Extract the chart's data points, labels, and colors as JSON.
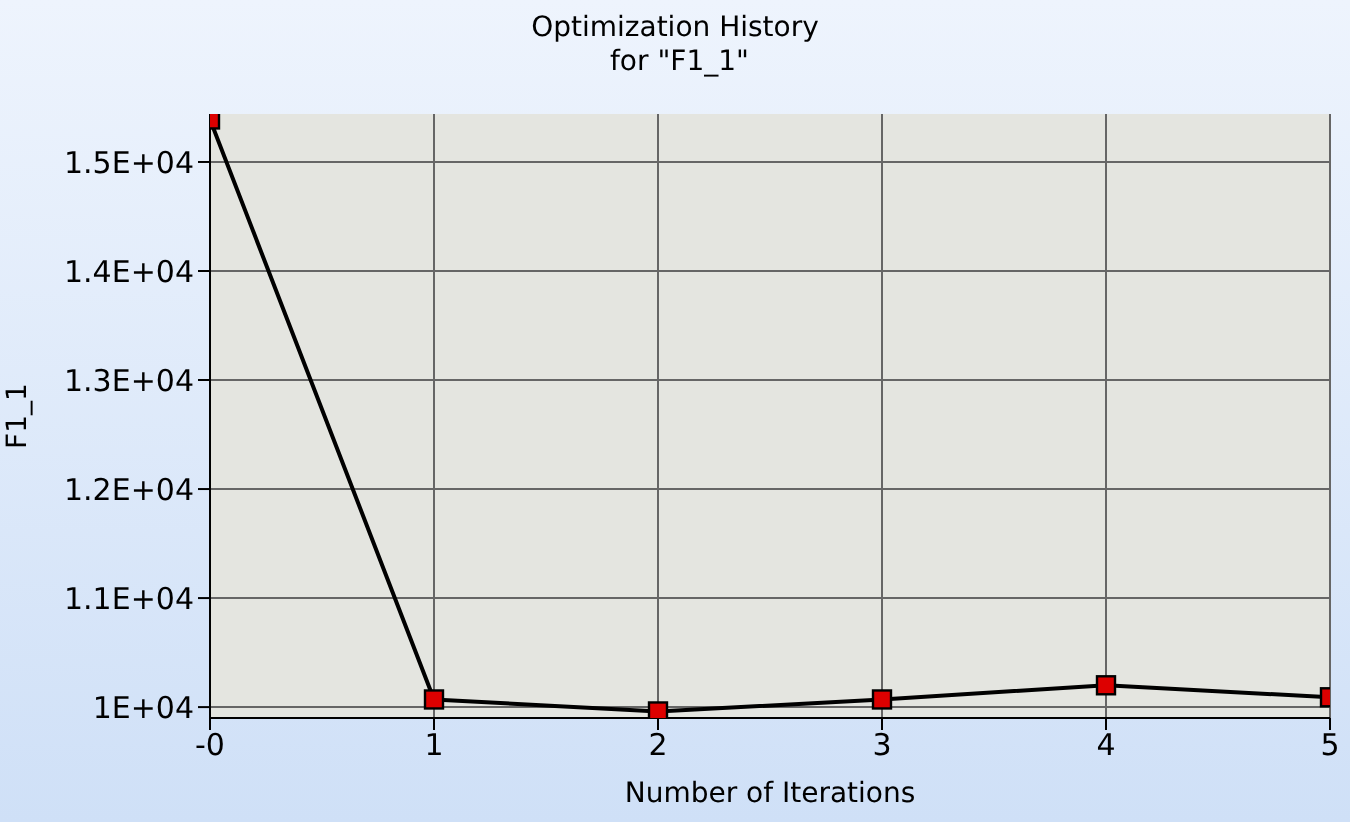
{
  "chart_data": {
    "type": "line",
    "title": "Optimization History\n for \"F1_1\"",
    "xlabel": "Number of Iterations",
    "ylabel": "F1_1",
    "x": [
      0,
      1,
      2,
      3,
      4,
      5
    ],
    "series": [
      {
        "color": "#000000",
        "values": [
          15390,
          10070,
          9960,
          10070,
          10200,
          10090
        ]
      }
    ],
    "xlim": [
      0,
      5
    ],
    "xticks": [
      {
        "value": 0,
        "label": "-0"
      },
      1,
      2,
      3,
      4,
      5
    ],
    "ylim": [
      9900,
      15440
    ],
    "yticks": [
      {
        "value": 10000,
        "label": "1E+04"
      },
      {
        "value": 11000,
        "label": "1.1E+04"
      },
      {
        "value": 12000,
        "label": "1.2E+04"
      },
      {
        "value": 13000,
        "label": "1.3E+04"
      },
      {
        "value": 14000,
        "label": "1.4E+04"
      },
      {
        "value": 15000,
        "label": "1.5E+04"
      }
    ],
    "grid": true,
    "marker": "square",
    "line_style": "solid",
    "legend": false
  }
}
